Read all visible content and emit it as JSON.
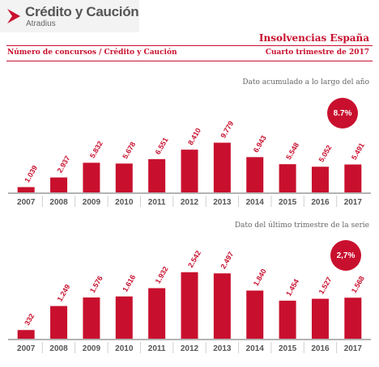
{
  "header": {
    "brand_name": "Crédito y Caución",
    "brand_sub": "Atradius",
    "report_title": "Insolvencias España",
    "subtitle_left": "Número de concursos  / Crédito y Caución",
    "subtitle_right": "Cuarto trimestre de  2017"
  },
  "colors": {
    "accent": "#c8102e",
    "axis_text": "#555555"
  },
  "chart_data": [
    {
      "type": "bar",
      "title": "Dato acumulado a lo largo del año",
      "categories": [
        "2007",
        "2008",
        "2009",
        "2010",
        "2011",
        "2012",
        "2013",
        "2014",
        "2015",
        "2016",
        "2017"
      ],
      "values": [
        1039,
        2937,
        5832,
        5678,
        6551,
        8410,
        9779,
        6943,
        5548,
        5052,
        5491
      ],
      "value_labels": [
        "1.039",
        "2.937",
        "5.832",
        "5.678",
        "6.551",
        "8.410",
        "9.779",
        "6.943",
        "5.548",
        "5.052",
        "5.491"
      ],
      "badge": "8.7%",
      "ylim": [
        0,
        10500
      ]
    },
    {
      "type": "bar",
      "title": "Dato del último trimestre de la serie",
      "categories": [
        "2007",
        "2008",
        "2009",
        "2010",
        "2011",
        "2012",
        "2013",
        "2014",
        "2015",
        "2016",
        "2017"
      ],
      "values": [
        332,
        1249,
        1576,
        1616,
        1932,
        2542,
        2497,
        1840,
        1454,
        1527,
        1568
      ],
      "value_labels": [
        "332",
        "1.249",
        "1.576",
        "1.616",
        "1.932",
        "2.542",
        "2.497",
        "1.840",
        "1.454",
        "1.527",
        "1.568"
      ],
      "badge": "2,7%",
      "ylim": [
        0,
        2750
      ]
    }
  ]
}
